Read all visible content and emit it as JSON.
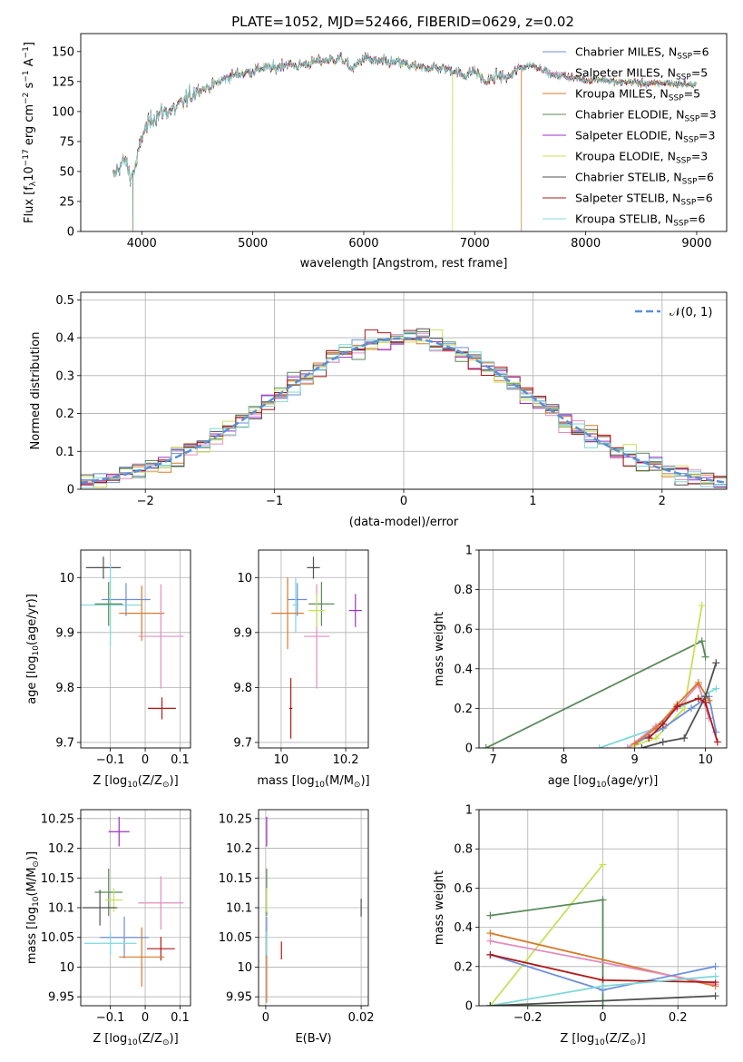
{
  "title": "PLATE=1052, MJD=52466, FIBERID=0629, z=0.02",
  "colors": {
    "chabrier_miles": "#6c8edc",
    "salpeter_miles": "#e38cbd",
    "kroupa_miles": "#d67a2a",
    "chabrier_elodie": "#5a8a5a",
    "salpeter_elodie": "#9b30c8",
    "kroupa_elodie": "#c8e05a",
    "chabrier_stelib": "#505050",
    "salpeter_stelib": "#b01818",
    "kroupa_stelib": "#7fd8d8"
  },
  "chart_data": [
    {
      "id": "spectrum",
      "type": "line",
      "xlabel": "wavelength [Angstrom, rest frame]",
      "ylabel_parts": [
        "Flux [f",
        "λ",
        "10",
        "−17",
        " erg cm",
        "−2",
        " s",
        "−1",
        " A",
        "−1",
        "]"
      ],
      "xlim": [
        3450,
        9270
      ],
      "ylim": [
        0,
        165
      ],
      "xticks": [
        4000,
        5000,
        6000,
        7000,
        8000,
        9000
      ],
      "yticks": [
        0,
        25,
        50,
        75,
        100,
        125,
        150
      ],
      "legend_position": "upper right",
      "series": [
        {
          "key": "chabrier_miles",
          "label_main": "Chabrier MILES, N",
          "label_sub": "SSP",
          "label_end": "=6"
        },
        {
          "key": "salpeter_miles",
          "label_main": "Salpeter MILES, N",
          "label_sub": "SSP",
          "label_end": "=5"
        },
        {
          "key": "kroupa_miles",
          "label_main": "Kroupa MILES, N",
          "label_sub": "SSP",
          "label_end": "=5"
        },
        {
          "key": "chabrier_elodie",
          "label_main": "Chabrier ELODIE, N",
          "label_sub": "SSP",
          "label_end": "=3"
        },
        {
          "key": "salpeter_elodie",
          "label_main": "Salpeter ELODIE, N",
          "label_sub": "SSP",
          "label_end": "=3"
        },
        {
          "key": "kroupa_elodie",
          "label_main": "Kroupa ELODIE, N",
          "label_sub": "SSP",
          "label_end": "=3"
        },
        {
          "key": "chabrier_stelib",
          "label_main": "Chabrier STELIB, N",
          "label_sub": "SSP",
          "label_end": "=6"
        },
        {
          "key": "salpeter_stelib",
          "label_main": "Salpeter STELIB, N",
          "label_sub": "SSP",
          "label_end": "=6"
        },
        {
          "key": "kroupa_stelib",
          "label_main": "Kroupa STELIB, N",
          "label_sub": "SSP",
          "label_end": "=6"
        }
      ],
      "continuum": [
        [
          3740,
          45
        ],
        [
          3800,
          55
        ],
        [
          3850,
          60
        ],
        [
          3900,
          45
        ],
        [
          3950,
          55
        ],
        [
          4000,
          80
        ],
        [
          4100,
          95
        ],
        [
          4200,
          100
        ],
        [
          4300,
          102
        ],
        [
          4400,
          110
        ],
        [
          4500,
          118
        ],
        [
          4600,
          120
        ],
        [
          4700,
          125
        ],
        [
          4800,
          130
        ],
        [
          4900,
          132
        ],
        [
          5000,
          134
        ],
        [
          5100,
          137
        ],
        [
          5200,
          136
        ],
        [
          5300,
          140
        ],
        [
          5400,
          138
        ],
        [
          5500,
          140
        ],
        [
          5600,
          142
        ],
        [
          5700,
          143
        ],
        [
          5800,
          144
        ],
        [
          5900,
          135
        ],
        [
          6000,
          145
        ],
        [
          6100,
          142
        ],
        [
          6200,
          141
        ],
        [
          6300,
          141
        ],
        [
          6400,
          139
        ],
        [
          6500,
          136
        ],
        [
          6600,
          137
        ],
        [
          6700,
          136
        ],
        [
          6800,
          135
        ],
        [
          6900,
          130
        ],
        [
          7000,
          134
        ],
        [
          7100,
          124
        ],
        [
          7200,
          130
        ],
        [
          7300,
          128
        ],
        [
          7400,
          136
        ],
        [
          7500,
          139
        ],
        [
          7600,
          136
        ],
        [
          7700,
          130
        ],
        [
          7800,
          130
        ],
        [
          7900,
          128
        ],
        [
          8000,
          126
        ],
        [
          8100,
          127
        ],
        [
          8200,
          126
        ],
        [
          8300,
          124
        ],
        [
          8400,
          125
        ],
        [
          8500,
          124
        ],
        [
          8600,
          123
        ],
        [
          8700,
          124
        ],
        [
          8800,
          123
        ],
        [
          8900,
          123
        ],
        [
          9000,
          122
        ]
      ],
      "dropouts": [
        {
          "key": "chabrier_elodie",
          "x": 3920
        },
        {
          "key": "kroupa_elodie",
          "x": 6800
        },
        {
          "key": "kroupa_miles",
          "x": 7420
        }
      ]
    },
    {
      "id": "residuals",
      "type": "step",
      "xlabel": "(data-model)/error",
      "ylabel": "Normed distribution",
      "xlim": [
        -2.5,
        2.5
      ],
      "ylim": [
        0,
        0.52
      ],
      "xticks": [
        -2,
        -1,
        0,
        1,
        2
      ],
      "yticks": [
        0.0,
        0.1,
        0.2,
        0.3,
        0.4,
        0.5
      ],
      "grid": true,
      "bin_width": 0.1,
      "legend_position": "upper right",
      "normal_label": "𝒩(0, 1)",
      "normal_color": "#5b8fd6"
    },
    {
      "id": "age_vs_Z",
      "type": "scatter",
      "xlabel_parts": [
        "Z [log",
        "10",
        "(Z/Z",
        "⊙",
        ")]"
      ],
      "ylabel_parts": [
        "age  [log",
        "10",
        "(age/yr)]"
      ],
      "xlim": [
        -0.185,
        0.13
      ],
      "ylim": [
        9.69,
        10.05
      ],
      "xticks": [
        -0.1,
        0.0,
        0.1
      ],
      "yticks": [
        9.7,
        9.8,
        9.9,
        10.0
      ],
      "grid": true,
      "points": [
        {
          "key": "chabrier_stelib",
          "x": -0.12,
          "y": 10.018,
          "xerr": 0.05,
          "yerr": 0.02
        },
        {
          "key": "chabrier_miles",
          "x": -0.055,
          "y": 9.96,
          "xerr": 0.07,
          "yerr": 0.03
        },
        {
          "key": "kroupa_stelib",
          "x": -0.1,
          "y": 9.95,
          "xerr": 0.09,
          "yerr": 0.075
        },
        {
          "key": "chabrier_elodie",
          "x": -0.105,
          "y": 9.952,
          "xerr": 0.04,
          "yerr": 0.04
        },
        {
          "key": "kroupa_miles",
          "x": -0.01,
          "y": 9.935,
          "xerr": 0.065,
          "yerr": 0.05
        },
        {
          "key": "salpeter_miles",
          "x": 0.045,
          "y": 9.893,
          "xerr": 0.065,
          "yerr": 0.095
        },
        {
          "key": "salpeter_stelib",
          "x": 0.048,
          "y": 9.762,
          "xerr": 0.04,
          "yerr": 0.02
        }
      ]
    },
    {
      "id": "age_vs_mass",
      "type": "scatter",
      "xlabel_parts": [
        "mass [log",
        "10",
        "(M/M",
        "⊙",
        ")]"
      ],
      "xlim": [
        9.93,
        10.27
      ],
      "ylim": [
        9.69,
        10.05
      ],
      "xticks": [
        10.0,
        10.2
      ],
      "yticks": [
        9.7,
        9.8,
        9.9,
        10.0
      ],
      "grid": true,
      "points": [
        {
          "key": "chabrier_stelib",
          "x": 10.1,
          "y": 10.018,
          "xerr": 0.02,
          "yerr": 0.02
        },
        {
          "key": "chabrier_miles",
          "x": 10.05,
          "y": 9.96,
          "xerr": 0.03,
          "yerr": 0.03
        },
        {
          "key": "kroupa_stelib",
          "x": 10.045,
          "y": 9.95,
          "xerr": 0.01,
          "yerr": 0.05
        },
        {
          "key": "chabrier_elodie",
          "x": 10.125,
          "y": 9.952,
          "xerr": 0.04,
          "yerr": 0.04
        },
        {
          "key": "kroupa_miles",
          "x": 10.02,
          "y": 9.935,
          "xerr": 0.05,
          "yerr": 0.065
        },
        {
          "key": "salpeter_miles",
          "x": 10.11,
          "y": 9.893,
          "xerr": 0.04,
          "yerr": 0.095
        },
        {
          "key": "salpeter_elodie",
          "x": 10.23,
          "y": 9.94,
          "xerr": 0.02,
          "yerr": 0.03
        },
        {
          "key": "salpeter_stelib",
          "x": 10.03,
          "y": 9.762,
          "xerr": 0.005,
          "yerr": 0.055
        },
        {
          "key": "kroupa_elodie",
          "x": 10.11,
          "y": 9.94,
          "xerr": 0.025,
          "yerr": 0.03
        }
      ]
    },
    {
      "id": "mass_weight_vs_age",
      "type": "line",
      "xlabel_parts": [
        "age  [log",
        "10",
        "(age/yr)]"
      ],
      "ylabel": "mass weight",
      "xlim": [
        6.8,
        10.3
      ],
      "ylim": [
        0,
        1.0
      ],
      "xticks": [
        7,
        8,
        9,
        10
      ],
      "yticks": [
        0.0,
        0.2,
        0.4,
        0.6,
        0.8,
        1.0
      ],
      "grid": true,
      "series": [
        {
          "key": "chabrier_elodie",
          "x": [
            6.9,
            9.95,
            10.0
          ],
          "y": [
            0.0,
            0.54,
            0.46
          ]
        },
        {
          "key": "kroupa_elodie",
          "x": [
            8.9,
            9.3,
            9.7,
            9.95
          ],
          "y": [
            0.0,
            0.05,
            0.2,
            0.72
          ]
        },
        {
          "key": "kroupa_stelib",
          "x": [
            8.5,
            9.3,
            9.6,
            9.9,
            10.15
          ],
          "y": [
            0.0,
            0.1,
            0.2,
            0.25,
            0.3
          ]
        },
        {
          "key": "chabrier_miles",
          "x": [
            9.0,
            9.4,
            9.8,
            10.05,
            10.15
          ],
          "y": [
            0.02,
            0.1,
            0.2,
            0.26,
            0.08
          ]
        },
        {
          "key": "salpeter_miles",
          "x": [
            8.9,
            9.3,
            9.6,
            9.9,
            10.05
          ],
          "y": [
            0.0,
            0.11,
            0.2,
            0.32,
            0.15
          ]
        },
        {
          "key": "kroupa_miles",
          "x": [
            9.0,
            9.3,
            9.6,
            9.9,
            10.05
          ],
          "y": [
            0.02,
            0.1,
            0.22,
            0.33,
            0.24
          ]
        },
        {
          "key": "chabrier_stelib",
          "x": [
            9.1,
            9.4,
            9.7,
            10.0,
            10.15
          ],
          "y": [
            0.0,
            0.03,
            0.05,
            0.26,
            0.43
          ]
        },
        {
          "key": "salpeter_stelib",
          "x": [
            9.2,
            9.4,
            9.6,
            9.9,
            10.0,
            10.17
          ],
          "y": [
            0.05,
            0.12,
            0.21,
            0.25,
            0.23,
            0.03
          ]
        }
      ]
    },
    {
      "id": "mass_vs_Z",
      "type": "scatter",
      "xlabel_parts": [
        "Z [log",
        "10",
        "(Z/Z",
        "⊙",
        ")]"
      ],
      "ylabel_parts": [
        "mass [log",
        "10",
        "(M/M",
        "⊙",
        ")]"
      ],
      "xlim": [
        -0.185,
        0.13
      ],
      "ylim": [
        9.935,
        10.265
      ],
      "xticks": [
        -0.1,
        0.0,
        0.1
      ],
      "yticks": [
        9.95,
        10.0,
        10.05,
        10.1,
        10.15,
        10.2,
        10.25
      ],
      "grid": true,
      "points": [
        {
          "key": "salpeter_elodie",
          "x": -0.075,
          "y": 10.228,
          "xerr": 0.03,
          "yerr": 0.025
        },
        {
          "key": "chabrier_elodie",
          "x": -0.105,
          "y": 10.126,
          "xerr": 0.04,
          "yerr": 0.04
        },
        {
          "key": "kroupa_elodie",
          "x": -0.09,
          "y": 10.113,
          "xerr": 0.025,
          "yerr": 0.02
        },
        {
          "key": "chabrier_stelib",
          "x": -0.13,
          "y": 10.1,
          "xerr": 0.05,
          "yerr": 0.03
        },
        {
          "key": "salpeter_miles",
          "x": 0.045,
          "y": 10.108,
          "xerr": 0.065,
          "yerr": 0.045
        },
        {
          "key": "chabrier_miles",
          "x": -0.06,
          "y": 10.05,
          "xerr": 0.07,
          "yerr": 0.035
        },
        {
          "key": "kroupa_stelib",
          "x": -0.1,
          "y": 10.04,
          "xerr": 0.075,
          "yerr": 0.02
        },
        {
          "key": "salpeter_stelib",
          "x": 0.045,
          "y": 10.031,
          "xerr": 0.04,
          "yerr": 0.02
        },
        {
          "key": "kroupa_miles",
          "x": -0.01,
          "y": 10.017,
          "xerr": 0.065,
          "yerr": 0.05
        }
      ]
    },
    {
      "id": "mass_vs_ebv",
      "type": "scatter",
      "xlabel": "E(B-V)",
      "xlim": [
        -0.0015,
        0.0215
      ],
      "ylim": [
        9.935,
        10.265
      ],
      "xticks": [
        0.0,
        0.02
      ],
      "yticks": [
        9.95,
        10.0,
        10.05,
        10.1,
        10.15,
        10.2,
        10.25
      ],
      "grid": true,
      "points": [
        {
          "key": "salpeter_elodie",
          "x": 0.0002,
          "y": 10.228,
          "xerr": 0,
          "yerr": 0.025
        },
        {
          "key": "chabrier_elodie",
          "x": 0.0002,
          "y": 10.126,
          "xerr": 0,
          "yerr": 0.04
        },
        {
          "key": "kroupa_elodie",
          "x": 0.0002,
          "y": 10.113,
          "xerr": 0,
          "yerr": 0.02
        },
        {
          "key": "chabrier_stelib",
          "x": 0.02,
          "y": 10.1,
          "xerr": 0,
          "yerr": 0.015
        },
        {
          "key": "chabrier_miles",
          "x": 0.0002,
          "y": 10.05,
          "xerr": 0,
          "yerr": 0.035
        },
        {
          "key": "kroupa_stelib",
          "x": 0.0002,
          "y": 10.04,
          "xerr": 0,
          "yerr": 0.02
        },
        {
          "key": "salpeter_stelib",
          "x": 0.0033,
          "y": 10.028,
          "xerr": 0,
          "yerr": 0.015
        },
        {
          "key": "kroupa_miles",
          "x": 0.0002,
          "y": 9.98,
          "xerr": 0,
          "yerr": 0.04
        }
      ]
    },
    {
      "id": "mass_weight_vs_Z",
      "type": "line",
      "xlabel_parts": [
        "Z [log",
        "10",
        "(Z/Z",
        "⊙",
        ")]"
      ],
      "ylabel": "mass weight",
      "xlim": [
        -0.33,
        0.33
      ],
      "ylim": [
        0,
        1.0
      ],
      "xticks": [
        -0.2,
        0.0,
        0.2
      ],
      "yticks": [
        0.0,
        0.2,
        0.4,
        0.6,
        0.8,
        1.0
      ],
      "grid": true,
      "series": [
        {
          "key": "kroupa_elodie",
          "x": [
            -0.3,
            0.0,
            -0.3
          ],
          "y": [
            0.0,
            0.72,
            0.0
          ]
        },
        {
          "key": "chabrier_elodie",
          "x": [
            -0.3,
            0.0,
            0.0,
            -0.3
          ],
          "y": [
            0.46,
            0.54,
            0.0,
            0.0
          ]
        },
        {
          "key": "kroupa_miles",
          "x": [
            -0.3,
            0.3
          ],
          "y": [
            0.37,
            0.1
          ]
        },
        {
          "key": "salpeter_miles",
          "x": [
            -0.3,
            0.3
          ],
          "y": [
            0.33,
            0.11
          ]
        },
        {
          "key": "chabrier_miles",
          "x": [
            -0.3,
            0.0,
            0.3
          ],
          "y": [
            0.26,
            0.08,
            0.2
          ]
        },
        {
          "key": "salpeter_stelib",
          "x": [
            -0.3,
            0.0,
            0.3
          ],
          "y": [
            0.26,
            0.13,
            0.12
          ]
        },
        {
          "key": "kroupa_stelib",
          "x": [
            -0.3,
            0.0,
            0.3
          ],
          "y": [
            0.0,
            0.1,
            0.15
          ]
        },
        {
          "key": "chabrier_stelib",
          "x": [
            -0.3,
            0.3
          ],
          "y": [
            0.0,
            0.05
          ]
        }
      ]
    }
  ]
}
